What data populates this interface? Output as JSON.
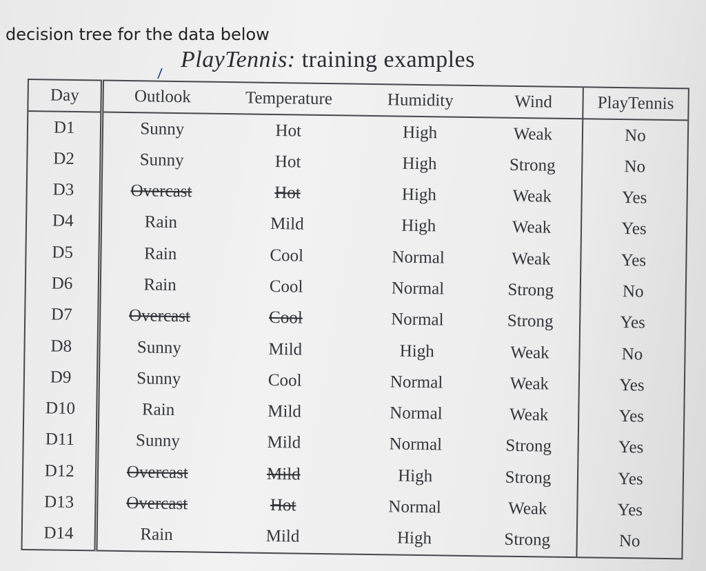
{
  "heading": "decision tree for the data below",
  "title": {
    "italic": "PlayTennis:",
    "rest": "training examples"
  },
  "table": {
    "columns": [
      "Day",
      "Outlook",
      "Temperature",
      "Humidity",
      "Wind",
      "PlayTennis"
    ],
    "rows": [
      {
        "day": "D1",
        "outlook": "Sunny",
        "temperature": "Hot",
        "humidity": "High",
        "wind": "Weak",
        "play": "No",
        "crossed_out": false
      },
      {
        "day": "D2",
        "outlook": "Sunny",
        "temperature": "Hot",
        "humidity": "High",
        "wind": "Strong",
        "play": "No",
        "crossed_out": false
      },
      {
        "day": "D3",
        "outlook": "Overcast",
        "temperature": "Hot",
        "humidity": "High",
        "wind": "Weak",
        "play": "Yes",
        "crossed_out": true
      },
      {
        "day": "D4",
        "outlook": "Rain",
        "temperature": "Mild",
        "humidity": "High",
        "wind": "Weak",
        "play": "Yes",
        "crossed_out": false
      },
      {
        "day": "D5",
        "outlook": "Rain",
        "temperature": "Cool",
        "humidity": "Normal",
        "wind": "Weak",
        "play": "Yes",
        "crossed_out": false
      },
      {
        "day": "D6",
        "outlook": "Rain",
        "temperature": "Cool",
        "humidity": "Normal",
        "wind": "Strong",
        "play": "No",
        "crossed_out": false
      },
      {
        "day": "D7",
        "outlook": "Overcast",
        "temperature": "Cool",
        "humidity": "Normal",
        "wind": "Strong",
        "play": "Yes",
        "crossed_out": true
      },
      {
        "day": "D8",
        "outlook": "Sunny",
        "temperature": "Mild",
        "humidity": "High",
        "wind": "Weak",
        "play": "No",
        "crossed_out": false
      },
      {
        "day": "D9",
        "outlook": "Sunny",
        "temperature": "Cool",
        "humidity": "Normal",
        "wind": "Weak",
        "play": "Yes",
        "crossed_out": false
      },
      {
        "day": "D10",
        "outlook": "Rain",
        "temperature": "Mild",
        "humidity": "Normal",
        "wind": "Weak",
        "play": "Yes",
        "crossed_out": false
      },
      {
        "day": "D11",
        "outlook": "Sunny",
        "temperature": "Mild",
        "humidity": "Normal",
        "wind": "Strong",
        "play": "Yes",
        "crossed_out": false
      },
      {
        "day": "D12",
        "outlook": "Overcast",
        "temperature": "Mild",
        "humidity": "High",
        "wind": "Strong",
        "play": "Yes",
        "crossed_out": true
      },
      {
        "day": "D13",
        "outlook": "Overcast",
        "temperature": "Hot",
        "humidity": "Normal",
        "wind": "Weak",
        "play": "Yes",
        "crossed_out": true
      },
      {
        "day": "D14",
        "outlook": "Rain",
        "temperature": "Mild",
        "humidity": "High",
        "wind": "Strong",
        "play": "No",
        "crossed_out": false
      }
    ]
  }
}
